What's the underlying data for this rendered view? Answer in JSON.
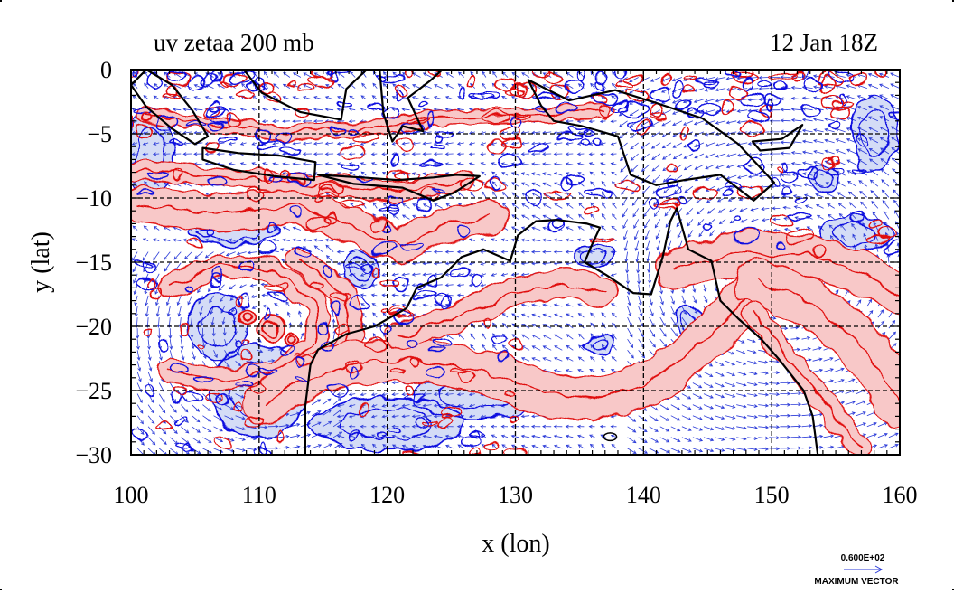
{
  "figure": {
    "title_left": "uv zetaa 200 mb",
    "title_right": "12 Jan 18Z",
    "xlabel": "x (lon)",
    "ylabel": "y (lat)",
    "xlim": [
      100,
      160
    ],
    "ylim": [
      -30,
      0
    ],
    "x_ticks": [
      "100",
      "110",
      "120",
      "130",
      "140",
      "150",
      "160"
    ],
    "y_ticks": [
      "0",
      "−5",
      "−10",
      "−15",
      "−20",
      "−25",
      "−30"
    ],
    "x_tick_values": [
      100,
      110,
      120,
      130,
      140,
      150,
      160
    ],
    "y_tick_values": [
      0,
      -5,
      -10,
      -15,
      -20,
      -25,
      -30
    ],
    "grid": true,
    "vector_key": {
      "value_label": "0.600E+02",
      "caption": "MAXIMUM VECTOR"
    },
    "colors": {
      "positive_contour": "#e01010",
      "positive_fill": "#f8c8c8",
      "negative_contour": "#1010e0",
      "negative_fill": "#d4dcf6",
      "vector": "#2a3ad8",
      "coastline": "#000000"
    }
  },
  "chart_data": {
    "type": "map",
    "variable": "uv zetaa",
    "level": "200 mb",
    "time": "12 Jan 18Z",
    "lon_range": [
      100,
      160
    ],
    "lat_range": [
      -30,
      0
    ],
    "max_vector": 60,
    "positive_bands": [
      {
        "points": [
          [
            100.5,
            -10.5
          ],
          [
            107,
            -11.2
          ],
          [
            113,
            -10.6
          ],
          [
            118,
            -12.5
          ],
          [
            121,
            -13.8
          ],
          [
            124,
            -12.2
          ],
          [
            128,
            -11.5
          ]
        ],
        "width": 1.3
      },
      {
        "points": [
          [
            100.5,
            -7.8
          ],
          [
            105,
            -8.2
          ],
          [
            110,
            -8.6
          ],
          [
            116,
            -9.0
          ],
          [
            121,
            -9.6
          ],
          [
            126,
            -8.6
          ]
        ],
        "width": 0.7
      },
      {
        "points": [
          [
            101,
            -3.5
          ],
          [
            106,
            -4.2
          ],
          [
            112,
            -5.0
          ],
          [
            118,
            -4.6
          ],
          [
            124,
            -3.8
          ],
          [
            131,
            -3.6
          ],
          [
            137,
            -3.2
          ]
        ],
        "width": 0.5
      },
      {
        "points": [
          [
            103,
            -17
          ],
          [
            107,
            -15.2
          ],
          [
            111,
            -15.6
          ],
          [
            114.5,
            -18.2
          ],
          [
            114.5,
            -21.3
          ],
          [
            111.5,
            -23.6
          ],
          [
            107,
            -24.2
          ],
          [
            103,
            -23.4
          ]
        ],
        "width": 0.8
      },
      {
        "points": [
          [
            113.2,
            -14.8
          ],
          [
            116.6,
            -17.5
          ],
          [
            117.2,
            -20.6
          ],
          [
            115.8,
            -23.4
          ]
        ],
        "width": 0.9
      },
      {
        "points": [
          [
            110.5,
            -26
          ],
          [
            113,
            -24.3
          ],
          [
            117,
            -22.9
          ],
          [
            122,
            -22.6
          ],
          [
            128,
            -23.6
          ],
          [
            132,
            -25.2
          ],
          [
            136,
            -25.7
          ],
          [
            140.5,
            -24.4
          ],
          [
            144,
            -21.8
          ],
          [
            147,
            -19.0
          ],
          [
            148.5,
            -17.0
          ]
        ],
        "width": 1.6
      },
      {
        "points": [
          [
            121,
            -20.8
          ],
          [
            126,
            -19.0
          ],
          [
            130,
            -17.3
          ],
          [
            134,
            -16.6
          ],
          [
            137,
            -17.3
          ]
        ],
        "width": 1.0
      },
      {
        "points": [
          [
            142.5,
            -15.5
          ],
          [
            148,
            -14.2
          ],
          [
            153,
            -14.5
          ],
          [
            157,
            -15.8
          ],
          [
            160,
            -17.5
          ]
        ],
        "width": 1.5
      },
      {
        "points": [
          [
            149,
            -16.5
          ],
          [
            153,
            -18.2
          ],
          [
            156,
            -20.5
          ],
          [
            158.5,
            -23.5
          ],
          [
            160,
            -26
          ]
        ],
        "width": 1.8
      },
      {
        "points": [
          [
            148.6,
            -19.0
          ],
          [
            151.8,
            -23.0
          ],
          [
            154.6,
            -26.5
          ],
          [
            157,
            -29.5
          ]
        ],
        "width": 0.8
      }
    ],
    "positive_spots": [
      {
        "lon": 111.0,
        "lat": -20.1,
        "r": 1.0
      },
      {
        "lon": 109.0,
        "lat": -19.2,
        "r": 0.6
      },
      {
        "lon": 112.5,
        "lat": -21.2,
        "r": 0.5
      }
    ],
    "negative_regions": [
      {
        "lon": 101.5,
        "lat": -6.5,
        "rx": 1.8,
        "ry": 3.5
      },
      {
        "lon": 108.0,
        "lat": -12.6,
        "rx": 3.5,
        "ry": 1.0
      },
      {
        "lon": 118.0,
        "lat": -15.6,
        "rx": 1.4,
        "ry": 1.4
      },
      {
        "lon": 106.8,
        "lat": -20.0,
        "rx": 2.4,
        "ry": 2.6
      },
      {
        "lon": 110.0,
        "lat": -25.0,
        "rx": 3.8,
        "ry": 3.6
      },
      {
        "lon": 127.0,
        "lat": -25.3,
        "rx": 5.0,
        "ry": 1.9
      },
      {
        "lon": 120.0,
        "lat": -27.6,
        "rx": 6.0,
        "ry": 2.0
      },
      {
        "lon": 136.0,
        "lat": -14.6,
        "rx": 1.5,
        "ry": 0.9
      },
      {
        "lon": 136.5,
        "lat": -21.5,
        "rx": 1.2,
        "ry": 0.8
      },
      {
        "lon": 143.5,
        "lat": -19.5,
        "rx": 1.0,
        "ry": 1.2
      },
      {
        "lon": 158.0,
        "lat": -5.0,
        "rx": 1.8,
        "ry": 3.0
      },
      {
        "lon": 156.5,
        "lat": -12.8,
        "rx": 2.8,
        "ry": 1.4
      },
      {
        "lon": 154.0,
        "lat": -8.5,
        "rx": 1.2,
        "ry": 1.0
      }
    ],
    "coastlines": [
      {
        "name": "Sumatra",
        "points": [
          [
            101.2,
            0.0
          ],
          [
            103.2,
            -1.2
          ],
          [
            104.8,
            -3.2
          ],
          [
            106.0,
            -5.2
          ],
          [
            105.0,
            -5.8
          ],
          [
            103.2,
            -4.6
          ],
          [
            101.2,
            -2.9
          ],
          [
            100.0,
            -1.2
          ]
        ]
      },
      {
        "name": "Java",
        "points": [
          [
            105.6,
            -6.1
          ],
          [
            108.4,
            -6.5
          ],
          [
            111.6,
            -6.7
          ],
          [
            114.4,
            -7.2
          ],
          [
            114.3,
            -8.6
          ],
          [
            111.2,
            -8.3
          ],
          [
            108.0,
            -7.8
          ],
          [
            105.6,
            -7.0
          ]
        ]
      },
      {
        "name": "Borneo",
        "points": [
          [
            108.8,
            0.0
          ],
          [
            110.2,
            -1.8
          ],
          [
            113.2,
            -3.3
          ],
          [
            116.4,
            -3.9
          ],
          [
            116.8,
            -1.5
          ],
          [
            118.4,
            0.0
          ]
        ]
      },
      {
        "name": "Sulawesi",
        "points": [
          [
            119.4,
            0.0
          ],
          [
            119.7,
            -3.4
          ],
          [
            120.4,
            -5.6
          ],
          [
            121.2,
            -4.4
          ],
          [
            122.8,
            -4.8
          ],
          [
            121.6,
            -2.2
          ],
          [
            123.3,
            -0.9
          ],
          [
            124.3,
            0.0
          ]
        ]
      },
      {
        "name": "Lesser Sunda",
        "points": [
          [
            114.6,
            -8.2
          ],
          [
            118.0,
            -8.4
          ],
          [
            120.8,
            -8.6
          ],
          [
            123.6,
            -8.4
          ],
          [
            125.4,
            -8.2
          ],
          [
            127.2,
            -8.3
          ],
          [
            125.2,
            -9.6
          ],
          [
            123.6,
            -10.2
          ],
          [
            121.2,
            -9.2
          ],
          [
            117.4,
            -8.9
          ]
        ]
      },
      {
        "name": "New Guinea",
        "points": [
          [
            131.0,
            -0.8
          ],
          [
            134.2,
            -2.4
          ],
          [
            137.8,
            -1.6
          ],
          [
            141.0,
            -2.6
          ],
          [
            144.6,
            -3.8
          ],
          [
            147.4,
            -5.8
          ],
          [
            150.2,
            -8.8
          ],
          [
            148.6,
            -10.2
          ],
          [
            146.0,
            -8.2
          ],
          [
            143.2,
            -8.6
          ],
          [
            141.0,
            -9.0
          ],
          [
            139.0,
            -8.2
          ],
          [
            138.0,
            -5.2
          ],
          [
            135.2,
            -4.4
          ],
          [
            133.0,
            -4.0
          ],
          [
            132.0,
            -2.8
          ]
        ]
      },
      {
        "name": "New Britain",
        "points": [
          [
            148.5,
            -5.6
          ],
          [
            150.8,
            -5.4
          ],
          [
            152.4,
            -4.3
          ],
          [
            151.4,
            -6.1
          ],
          [
            149.1,
            -6.3
          ]
        ]
      },
      {
        "name": "Australia",
        "points": [
          [
            113.6,
            -30.0
          ],
          [
            113.6,
            -26.2
          ],
          [
            114.0,
            -23.0
          ],
          [
            114.6,
            -21.8
          ],
          [
            116.8,
            -20.6
          ],
          [
            119.0,
            -20.0
          ],
          [
            121.5,
            -18.6
          ],
          [
            122.3,
            -17.0
          ],
          [
            124.2,
            -16.2
          ],
          [
            125.8,
            -14.6
          ],
          [
            127.5,
            -14.0
          ],
          [
            129.6,
            -14.9
          ],
          [
            130.2,
            -12.9
          ],
          [
            131.6,
            -11.8
          ],
          [
            133.2,
            -11.7
          ],
          [
            135.6,
            -12.0
          ],
          [
            136.6,
            -12.3
          ],
          [
            135.9,
            -13.8
          ],
          [
            135.4,
            -15.0
          ],
          [
            137.1,
            -16.0
          ],
          [
            139.2,
            -17.4
          ],
          [
            140.6,
            -17.5
          ],
          [
            141.5,
            -14.6
          ],
          [
            142.1,
            -11.8
          ],
          [
            142.6,
            -10.8
          ],
          [
            143.5,
            -14.0
          ],
          [
            145.3,
            -14.9
          ],
          [
            146.0,
            -18.0
          ],
          [
            147.4,
            -19.4
          ],
          [
            149.2,
            -21.0
          ],
          [
            150.6,
            -22.6
          ],
          [
            152.5,
            -25.0
          ],
          [
            153.2,
            -27.0
          ],
          [
            153.6,
            -30.0
          ]
        ]
      }
    ],
    "lakes": [
      {
        "lon": 137.4,
        "lat": -28.6,
        "rx": 0.5,
        "ry": 0.3
      }
    ]
  }
}
